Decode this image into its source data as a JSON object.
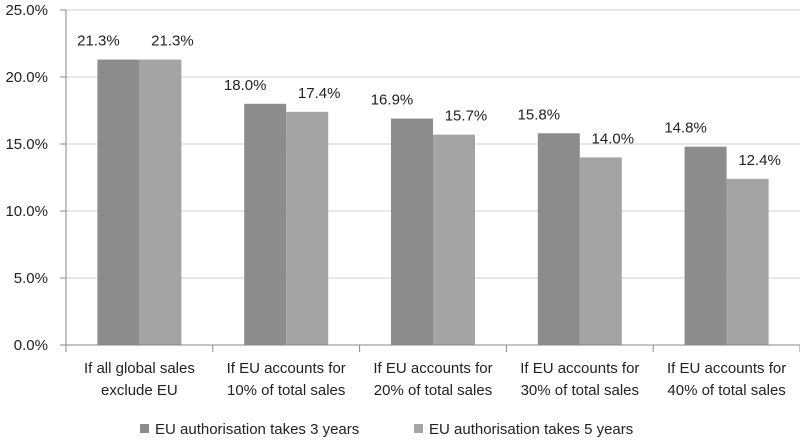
{
  "chart_data": {
    "type": "bar",
    "title": "",
    "xlabel": "",
    "ylabel": "",
    "ylim": [
      0,
      25
    ],
    "yticks": [
      "0.0%",
      "5.0%",
      "10.0%",
      "15.0%",
      "20.0%",
      "25.0%"
    ],
    "ytick_values": [
      0,
      5,
      10,
      15,
      20,
      25
    ],
    "grid": true,
    "legend_position": "bottom",
    "categories": [
      [
        "If all global sales",
        "exclude EU"
      ],
      [
        "If EU accounts for",
        "10% of total sales"
      ],
      [
        "If EU accounts for",
        "20% of total sales"
      ],
      [
        "If EU accounts for",
        "30% of total sales"
      ],
      [
        "If EU accounts for",
        "40% of total sales"
      ]
    ],
    "series": [
      {
        "name": "EU authorisation takes 3 years",
        "color": "#8c8c8c",
        "values": [
          21.3,
          18.0,
          16.9,
          15.8,
          14.8
        ],
        "labels": [
          "21.3%",
          "18.0%",
          "16.9%",
          "15.8%",
          "14.8%"
        ]
      },
      {
        "name": "EU authorisation takes 5 years",
        "color": "#a4a4a4",
        "values": [
          21.3,
          17.4,
          15.7,
          14.0,
          12.4
        ],
        "labels": [
          "21.3%",
          "17.4%",
          "15.7%",
          "14.0%",
          "12.4%"
        ]
      }
    ]
  }
}
